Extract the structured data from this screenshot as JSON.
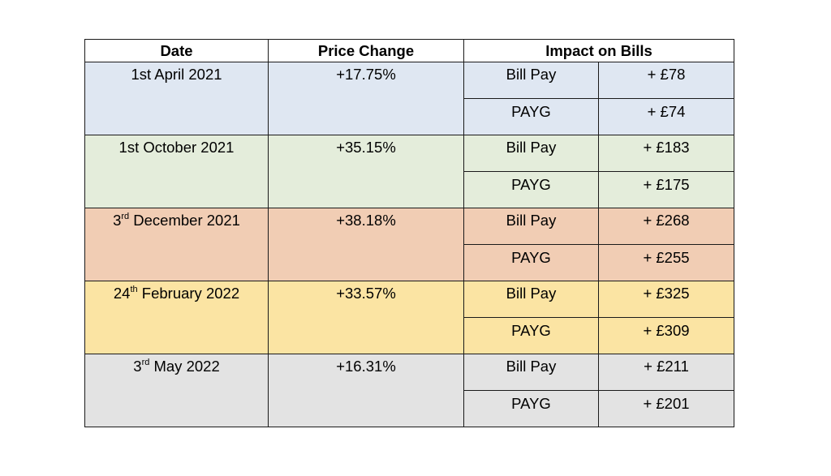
{
  "headers": {
    "date": "Date",
    "price_change": "Price Change",
    "impact": "Impact on Bills"
  },
  "rows": [
    {
      "date": "1st April 2021",
      "date_sup": "",
      "date_rest": "",
      "change": "+17.75%",
      "color": "#dfe7f2",
      "bill_label": "Bill Pay",
      "bill_amount": "+ £78",
      "payg_label": "PAYG",
      "payg_amount": "+ £74"
    },
    {
      "date": "1st October 2021",
      "date_sup": "",
      "date_rest": "",
      "change": "+35.15%",
      "color": "#e4eddb",
      "bill_label": "Bill Pay",
      "bill_amount": "+ £183",
      "payg_label": "PAYG",
      "payg_amount": "+ £175"
    },
    {
      "date": "3",
      "date_sup": "rd",
      "date_rest": " December 2021",
      "change": "+38.18%",
      "color": "#f1cdb4",
      "bill_label": "Bill Pay",
      "bill_amount": "+ £268",
      "payg_label": "PAYG",
      "payg_amount": "+ £255"
    },
    {
      "date": "24",
      "date_sup": "th",
      "date_rest": " February 2022",
      "change": "+33.57%",
      "color": "#fbe4a3",
      "bill_label": "Bill Pay",
      "bill_amount": "+ £325",
      "payg_label": "PAYG",
      "payg_amount": "+ £309"
    },
    {
      "date": "3",
      "date_sup": "rd",
      "date_rest": " May 2022",
      "change": "+16.31%",
      "color": "#e3e3e3",
      "bill_label": "Bill Pay",
      "bill_amount": "+ £211",
      "payg_label": "PAYG",
      "payg_amount": "+ £201"
    }
  ]
}
